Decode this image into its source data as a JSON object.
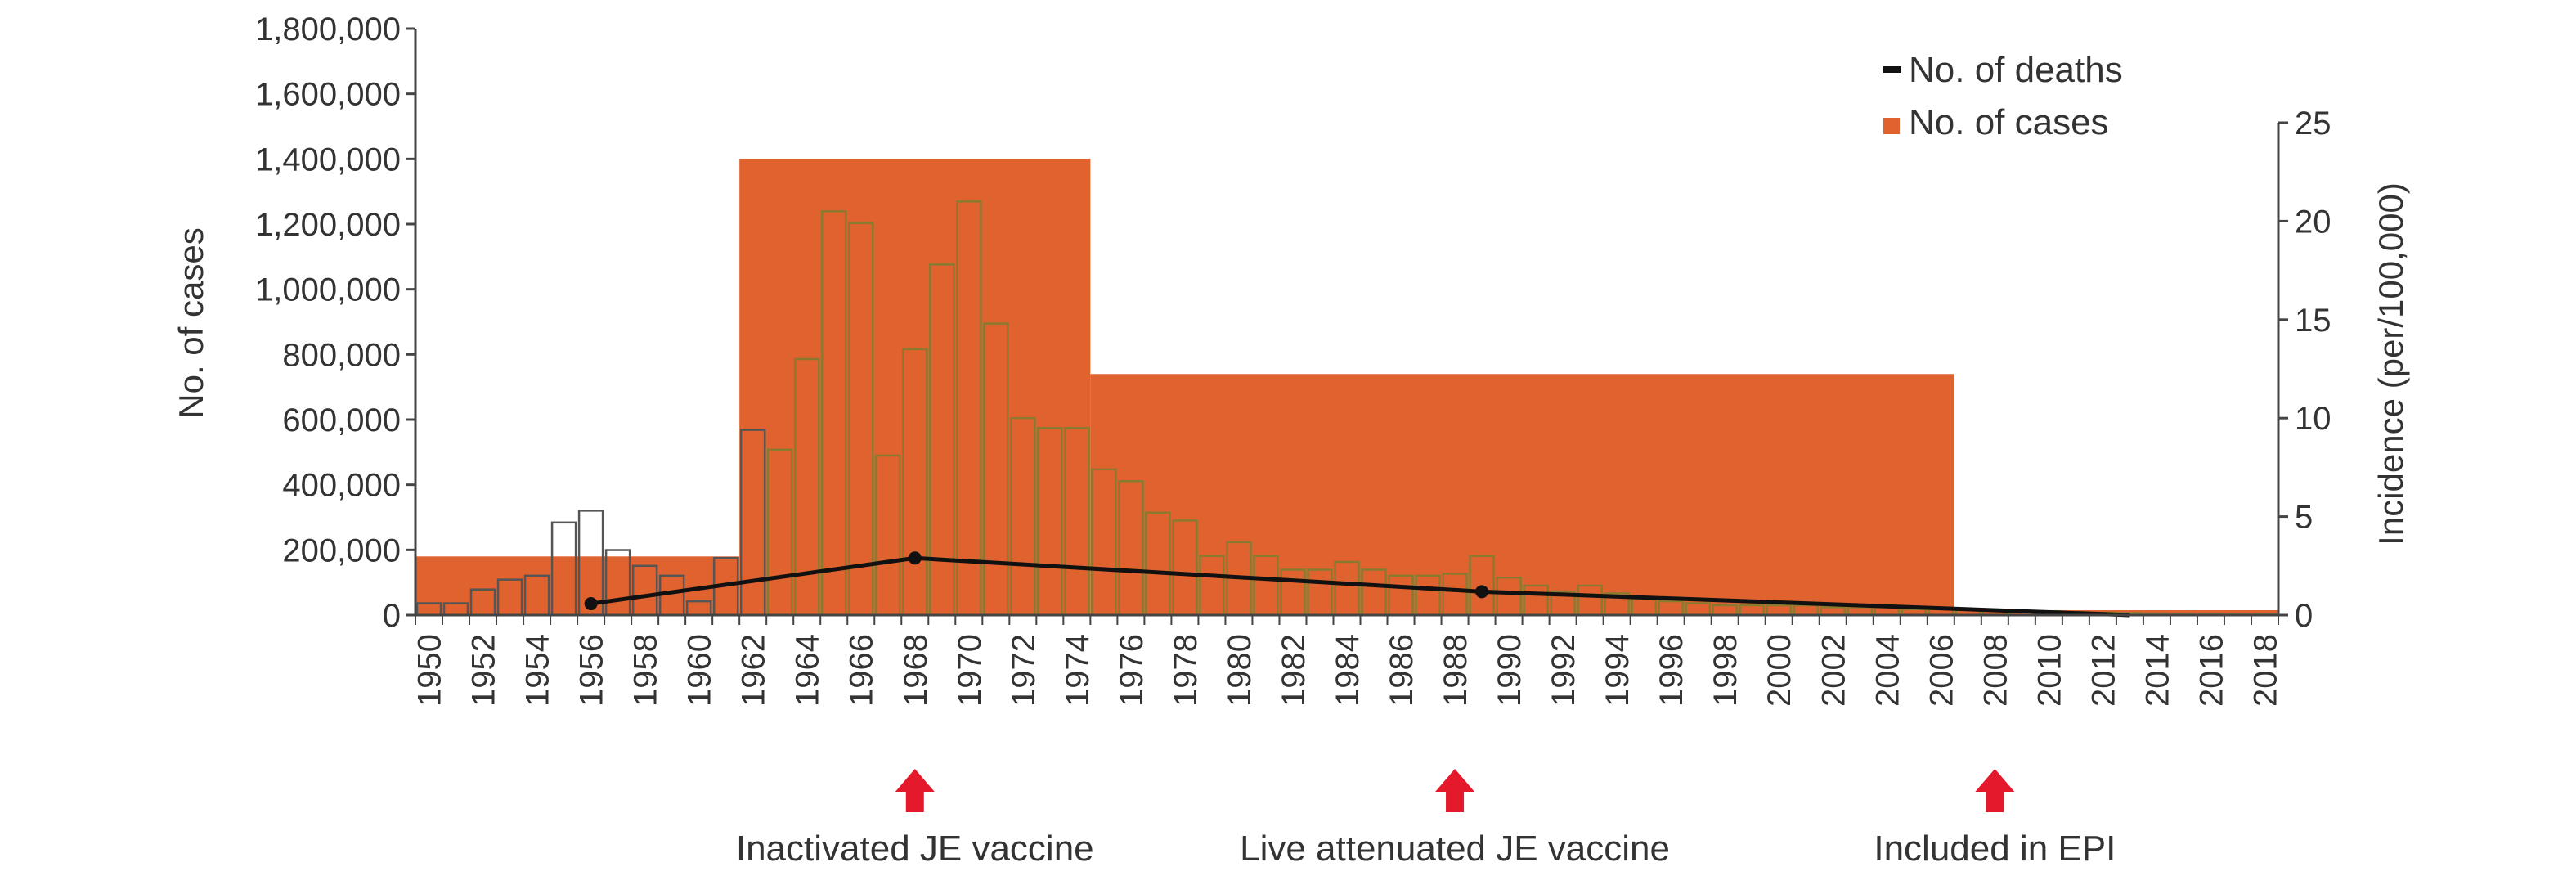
{
  "chart_data": {
    "type": "bar",
    "ylabel": "No. of cases",
    "y2label": "Incidence (per/100,000)",
    "ylim": [
      0,
      1800000
    ],
    "y2lim": [
      0,
      25
    ],
    "yticks": [
      "0",
      "200,000",
      "400,000",
      "600,000",
      "800,000",
      "1,000,000",
      "1,200,000",
      "1,400,000",
      "1,600,000",
      "1,800,000"
    ],
    "y2ticks": [
      "0",
      "5",
      "10",
      "15",
      "20",
      "25"
    ],
    "xticks": [
      "1950",
      "1952",
      "1954",
      "1956",
      "1958",
      "1960",
      "1962",
      "1964",
      "1966",
      "1968",
      "1970",
      "1972",
      "1974",
      "1976",
      "1978",
      "1980",
      "1982",
      "1984",
      "1986",
      "1988",
      "1990",
      "1992",
      "1994",
      "1996",
      "1998",
      "2000",
      "2002",
      "2004",
      "2006",
      "2008",
      "2010",
      "2012",
      "2014",
      "2016",
      "2018"
    ],
    "legend": {
      "placement": "top-right",
      "deaths_label": "No. of deaths",
      "cases_label": "No. of cases"
    },
    "colors": {
      "cases": "#e0622f",
      "bar_outline_olive": "#8a7a30",
      "bar_outline_grey": "#555555",
      "deaths_line": "#111111",
      "arrow": "#e4192b",
      "axis": "#444444"
    },
    "background_periods": {
      "series_name": "No. of cases",
      "color": "#e0622f",
      "periods": [
        {
          "start_year": 1950,
          "end_year": 1962,
          "cases": 180000
        },
        {
          "start_year": 1962,
          "end_year": 1975,
          "cases": 1400000
        },
        {
          "start_year": 1975,
          "end_year": 2007,
          "cases": 740000
        },
        {
          "start_year": 2007,
          "end_year": 2019,
          "cases": 15000
        }
      ]
    },
    "incidence": {
      "series_name": "Incidence (per/100,000)",
      "years": [
        1950,
        1951,
        1952,
        1953,
        1954,
        1955,
        1956,
        1957,
        1958,
        1959,
        1960,
        1961,
        1962,
        1963,
        1964,
        1965,
        1966,
        1967,
        1968,
        1969,
        1970,
        1971,
        1972,
        1973,
        1974,
        1975,
        1976,
        1977,
        1978,
        1979,
        1980,
        1981,
        1982,
        1983,
        1984,
        1985,
        1986,
        1987,
        1988,
        1989,
        1990,
        1991,
        1992,
        1993,
        1994,
        1995,
        1996,
        1997,
        1998,
        1999,
        2000,
        2001,
        2002,
        2003,
        2004,
        2005,
        2006,
        2007,
        2008,
        2009,
        2010,
        2011,
        2012,
        2013,
        2014,
        2015,
        2016,
        2017,
        2018
      ],
      "values": [
        0.6,
        0.6,
        1.3,
        1.8,
        2.0,
        4.7,
        5.3,
        3.3,
        2.5,
        2.0,
        0.7,
        2.9,
        9.4,
        8.4,
        13.0,
        20.5,
        19.9,
        8.1,
        13.5,
        17.8,
        21.0,
        14.8,
        10.0,
        9.5,
        9.5,
        7.4,
        6.8,
        5.2,
        4.8,
        3.0,
        3.7,
        3.0,
        2.3,
        2.3,
        2.7,
        2.3,
        2.0,
        2.0,
        2.1,
        3.0,
        1.9,
        1.5,
        1.2,
        1.5,
        1.1,
        0.8,
        0.7,
        0.6,
        0.5,
        0.5,
        0.5,
        0.5,
        0.4,
        0.4,
        0.4,
        0.3,
        0.3,
        0.3,
        0.25,
        0.2,
        0.2,
        0.15,
        0.12,
        0.1,
        0.08,
        0.07,
        0.07,
        0.06,
        0.06
      ],
      "olive_outline_years": [
        1963,
        1964,
        1965,
        1966,
        1967,
        1968,
        1969,
        1970,
        1971,
        1972,
        1973,
        1974,
        1975,
        1976,
        1977,
        1978,
        1979,
        1980,
        1981,
        1982,
        1983,
        1984,
        1985,
        1986,
        1987,
        1988,
        1989,
        1990,
        1991,
        1992,
        1993,
        1994,
        1995,
        1996,
        1997,
        1998,
        1999,
        2000,
        2001,
        2002,
        2003,
        2004,
        2005,
        2006,
        2007,
        2008,
        2009,
        2010,
        2011,
        2012,
        2013,
        2014,
        2015,
        2016,
        2017,
        2018
      ]
    },
    "deaths": {
      "series_name": "No. of deaths",
      "points": [
        {
          "year": 1956,
          "cases": 35000
        },
        {
          "year": 1968,
          "cases": 175000
        },
        {
          "year": 1989,
          "cases": 72000
        },
        {
          "year": 2013,
          "cases": 0
        }
      ],
      "marked_years": [
        1956,
        1968,
        1989
      ]
    },
    "annotations": [
      {
        "year": 1968,
        "label": "Inactivated JE vaccine"
      },
      {
        "year": 1988,
        "label": "Live attenuated JE vaccine"
      },
      {
        "year": 2008,
        "label": "Included in EPI"
      }
    ]
  }
}
